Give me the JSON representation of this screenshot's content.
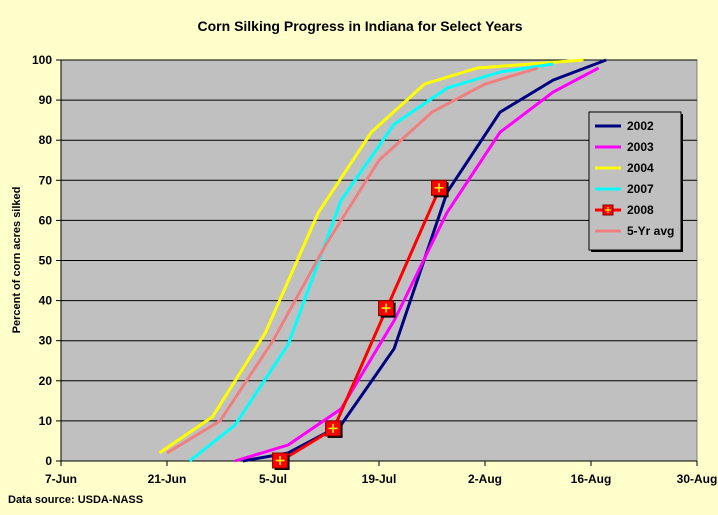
{
  "chart_data": {
    "type": "line",
    "title": "Corn Silking Progress in Indiana for Select Years",
    "ylabel": "Percent of corn acres silked",
    "xlabel": "",
    "source": "Data source: USDA-NASS",
    "x_ticks": [
      "7-Jun",
      "21-Jun",
      "5-Jul",
      "19-Jul",
      "2-Aug",
      "16-Aug",
      "30-Aug"
    ],
    "xlim": [
      "2008-06-07",
      "2008-08-30"
    ],
    "ylim": [
      0,
      100
    ],
    "y_ticks": [
      0,
      10,
      20,
      30,
      40,
      50,
      60,
      70,
      80,
      90,
      100
    ],
    "grid": "horizontal",
    "legend_position": "right",
    "plot_background": "#c0c0c0",
    "page_background": "#ffffcc",
    "series": [
      {
        "name": "2002",
        "color": "#000080",
        "marker": "none",
        "x": [
          "2008-07-01",
          "2008-07-07",
          "2008-07-14",
          "2008-07-21",
          "2008-07-28",
          "2008-08-04",
          "2008-08-11",
          "2008-08-18"
        ],
        "y": [
          0,
          2,
          9,
          28,
          67,
          87,
          95,
          100
        ]
      },
      {
        "name": "2003",
        "color": "#ff00ff",
        "marker": "none",
        "x": [
          "2008-06-30",
          "2008-07-07",
          "2008-07-14",
          "2008-07-21",
          "2008-07-28",
          "2008-08-04",
          "2008-08-11",
          "2008-08-17"
        ],
        "y": [
          0,
          4,
          13,
          35,
          62,
          82,
          92,
          98
        ]
      },
      {
        "name": "2004",
        "color": "#ffff00",
        "marker": "none",
        "x": [
          "2008-06-20",
          "2008-06-27",
          "2008-07-04",
          "2008-07-11",
          "2008-07-18",
          "2008-07-25",
          "2008-08-01",
          "2008-08-08",
          "2008-08-15"
        ],
        "y": [
          2,
          11,
          32,
          62,
          82,
          94,
          98,
          99,
          100
        ]
      },
      {
        "name": "2007",
        "color": "#00ffff",
        "marker": "none",
        "x": [
          "2008-06-24",
          "2008-06-30",
          "2008-07-07",
          "2008-07-14",
          "2008-07-21",
          "2008-07-28",
          "2008-08-04",
          "2008-08-11"
        ],
        "y": [
          0,
          9,
          29,
          65,
          84,
          93,
          97,
          99
        ]
      },
      {
        "name": "2008",
        "color": "#ff0000",
        "marker": "square-plus",
        "x": [
          "2008-07-06",
          "2008-07-13",
          "2008-07-20",
          "2008-07-27"
        ],
        "y": [
          0,
          8,
          38,
          68
        ]
      },
      {
        "name": "5-Yr avg",
        "color": "#f08080",
        "marker": "none",
        "x": [
          "2008-06-21",
          "2008-06-28",
          "2008-07-05",
          "2008-07-12",
          "2008-07-19",
          "2008-07-26",
          "2008-08-02",
          "2008-08-09"
        ],
        "y": [
          2,
          10,
          30,
          54,
          75,
          87,
          94,
          98
        ]
      }
    ]
  }
}
